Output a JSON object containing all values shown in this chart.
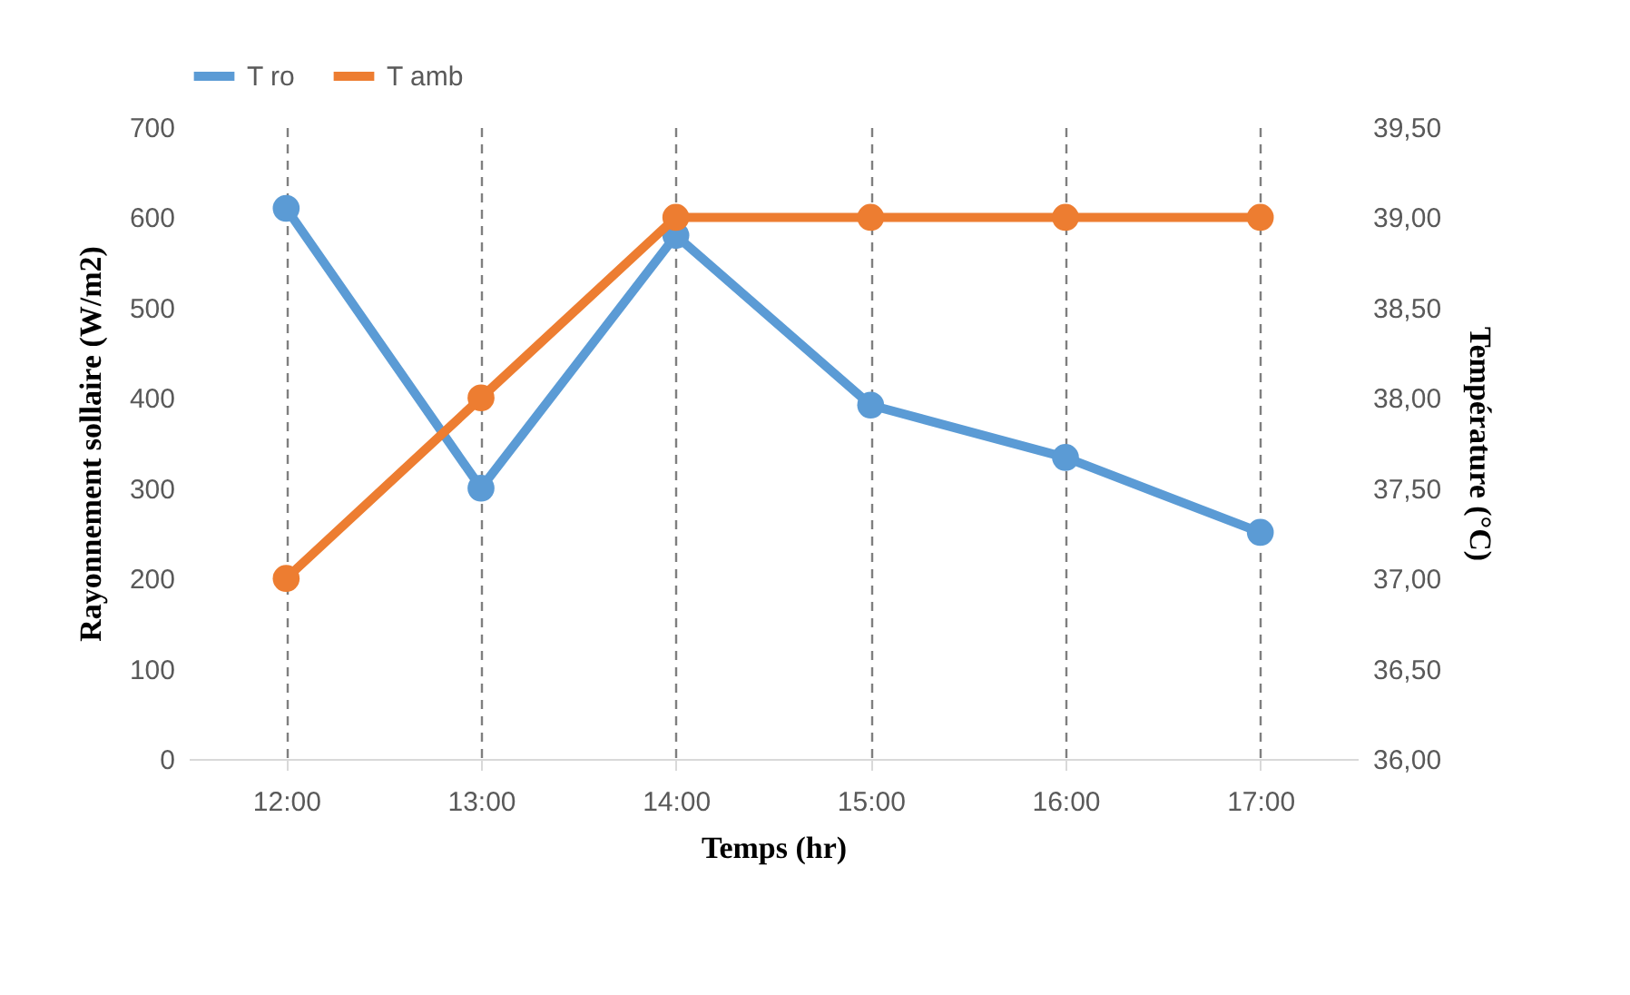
{
  "chart_data": {
    "type": "line",
    "xlabel": "Temps (hr)",
    "ylabel": "Rayonnement  sollaire (W/m2)",
    "y2label": "Température (°C)",
    "categories": [
      "12:00",
      "13:00",
      "14:00",
      "15:00",
      "16:00",
      "17:00"
    ],
    "series": [
      {
        "name": "T ro",
        "color": "#5b9bd5",
        "values": [
          610,
          300,
          580,
          392,
          334,
          251
        ]
      },
      {
        "name": "T amb",
        "color": "#ed7d31",
        "axis": "y2",
        "values": [
          37,
          38,
          39,
          39,
          39,
          39
        ]
      }
    ],
    "ylim": [
      0,
      700
    ],
    "yticks": [
      0,
      100,
      200,
      300,
      400,
      500,
      600,
      700
    ],
    "y2lim": [
      36,
      39.5
    ],
    "y2ticks": [
      {
        "value": 36,
        "label": "36,00"
      },
      {
        "value": 36.5,
        "label": "36,50"
      },
      {
        "value": 37,
        "label": "37,00"
      },
      {
        "value": 37.5,
        "label": "37,50"
      },
      {
        "value": 38,
        "label": "38,00"
      },
      {
        "value": 38.5,
        "label": "38,50"
      },
      {
        "value": 39,
        "label": "39,00"
      },
      {
        "value": 39.5,
        "label": "39,50"
      }
    ],
    "grid": "x",
    "legend": "top",
    "marker": "circle",
    "line_style": "solid"
  }
}
